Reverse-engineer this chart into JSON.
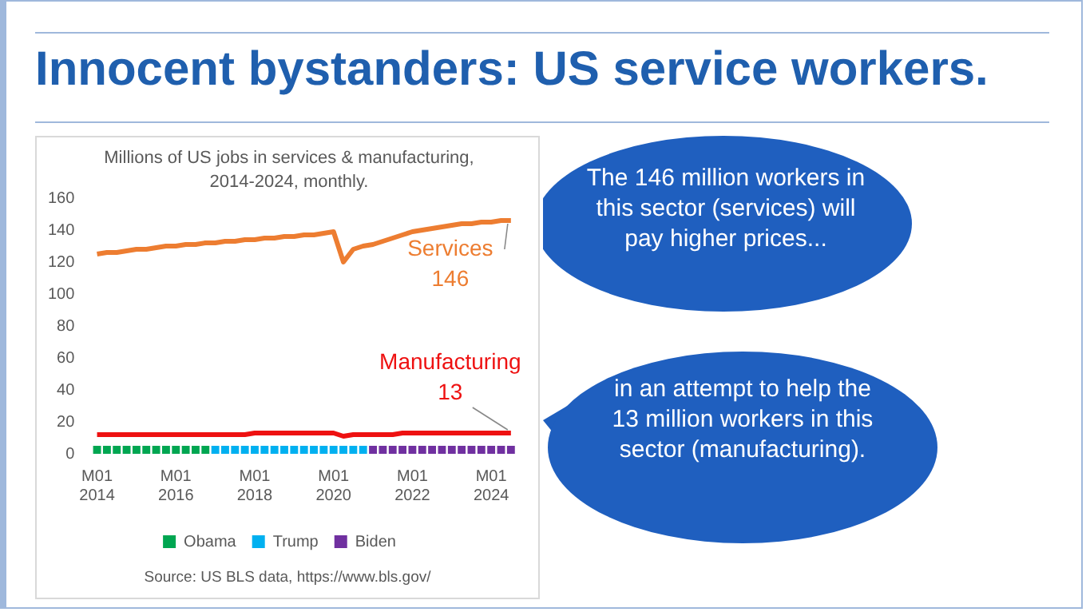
{
  "chart_data": {
    "type": "line",
    "title": "Innocent bystanders: US service workers.",
    "subtitle": "Millions of US jobs in services & manufacturing, 2014-2024, monthly.",
    "categories": [
      "M01 2014",
      null,
      null,
      null,
      null,
      null,
      null,
      null,
      "M01 2016",
      null,
      null,
      null,
      null,
      null,
      null,
      null,
      "M01 2018",
      null,
      null,
      null,
      null,
      null,
      null,
      null,
      "M01 2020",
      null,
      null,
      null,
      null,
      null,
      null,
      null,
      "M01 2022",
      null,
      null,
      null,
      null,
      null,
      null,
      null,
      "M01 2024",
      null,
      null
    ],
    "series": [
      {
        "name": "Services",
        "color": "#ed7d31",
        "values": [
          125,
          126,
          126,
          127,
          128,
          128,
          129,
          130,
          130,
          131,
          131,
          132,
          132,
          133,
          133,
          134,
          134,
          135,
          135,
          136,
          136,
          137,
          137,
          138,
          139,
          120,
          128,
          130,
          131,
          133,
          135,
          137,
          139,
          140,
          141,
          142,
          143,
          144,
          144,
          145,
          145,
          146,
          146
        ],
        "value_labels": [
          null,
          null,
          null,
          null,
          null,
          null,
          null,
          null,
          null,
          null,
          null,
          null,
          null,
          null,
          null,
          null,
          null,
          null,
          null,
          null,
          null,
          null,
          null,
          null,
          null,
          null,
          null,
          null,
          null,
          null,
          null,
          null,
          null,
          null,
          null,
          null,
          null,
          null,
          null,
          null,
          null,
          null,
          "146"
        ]
      },
      {
        "name": "Manufacturing",
        "color": "#ee1111",
        "values": [
          12,
          12,
          12,
          12,
          12,
          12,
          12,
          12,
          12,
          12,
          12,
          12,
          12,
          12,
          12,
          12,
          13,
          13,
          13,
          13,
          13,
          13,
          13,
          13,
          13,
          11,
          12,
          12,
          12,
          12,
          12,
          13,
          13,
          13,
          13,
          13,
          13,
          13,
          13,
          13,
          13,
          13,
          13
        ],
        "value_labels": [
          null,
          null,
          null,
          null,
          null,
          null,
          null,
          null,
          null,
          null,
          null,
          null,
          null,
          null,
          null,
          null,
          null,
          null,
          null,
          null,
          null,
          null,
          null,
          null,
          null,
          null,
          null,
          null,
          null,
          null,
          null,
          null,
          null,
          null,
          null,
          null,
          null,
          null,
          null,
          null,
          null,
          null,
          "13"
        ]
      },
      {
        "name": "Obama",
        "type": "bar",
        "color": "#00a651",
        "values": [
          5,
          5,
          5,
          5,
          5,
          5,
          5,
          5,
          5,
          5,
          5,
          5,
          null,
          null,
          null,
          null,
          null,
          null,
          null,
          null,
          null,
          null,
          null,
          null,
          null,
          null,
          null,
          null,
          null,
          null,
          null,
          null,
          null,
          null,
          null,
          null,
          null,
          null,
          null,
          null,
          null,
          null,
          null
        ]
      },
      {
        "name": "Trump",
        "type": "bar",
        "color": "#00b0f0",
        "values": [
          null,
          null,
          null,
          null,
          null,
          null,
          null,
          null,
          null,
          null,
          null,
          null,
          5,
          5,
          5,
          5,
          5,
          5,
          5,
          5,
          5,
          5,
          5,
          5,
          5,
          5,
          5,
          5,
          null,
          null,
          null,
          null,
          null,
          null,
          null,
          null,
          null,
          null,
          null,
          null,
          null,
          null,
          null
        ]
      },
      {
        "name": "Biden",
        "type": "bar",
        "color": "#7030a0",
        "values": [
          null,
          null,
          null,
          null,
          null,
          null,
          null,
          null,
          null,
          null,
          null,
          null,
          null,
          null,
          null,
          null,
          null,
          null,
          null,
          null,
          null,
          null,
          null,
          null,
          null,
          null,
          null,
          null,
          5,
          5,
          5,
          5,
          5,
          5,
          5,
          5,
          5,
          5,
          5,
          5,
          5,
          5,
          5
        ]
      }
    ],
    "ylim": [
      0,
      160
    ],
    "yticks": [
      0,
      20,
      40,
      60,
      80,
      100,
      120,
      140,
      160
    ],
    "grid": false,
    "legend": "bottom",
    "annotations": [
      "The 146 million workers in this sector (services) will pay higher prices...",
      "in an attempt to help the 13 million workers in this sector (manufacturing).",
      "Source: US BLS data, https://www.bls.gov/"
    ]
  }
}
